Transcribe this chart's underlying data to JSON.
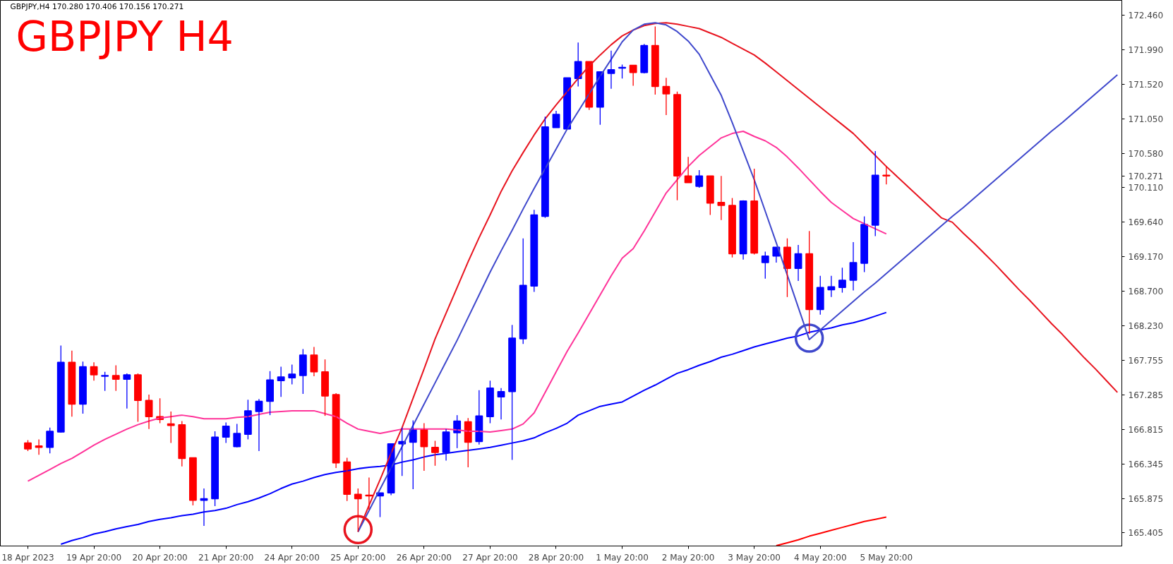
{
  "chart_data": {
    "type": "candlestick",
    "title": "GBPJPY H4",
    "subtitle": "GBPJPY,H4 170.280 170.406 170.156 170.271",
    "categories": [
      "18 Apr 2023",
      null,
      null,
      null,
      null,
      null,
      "19 Apr 20:00",
      null,
      null,
      null,
      null,
      null,
      "20 Apr 20:00",
      null,
      null,
      null,
      null,
      null,
      "21 Apr 20:00",
      null,
      null,
      null,
      null,
      null,
      "24 Apr 20:00",
      null,
      null,
      null,
      null,
      null,
      "25 Apr 20:00",
      null,
      null,
      null,
      null,
      null,
      "26 Apr 20:00",
      null,
      null,
      null,
      null,
      null,
      "27 Apr 20:00",
      null,
      null,
      null,
      null,
      null,
      "28 Apr 20:00",
      null,
      null,
      null,
      null,
      null,
      "1 May 20:00",
      null,
      null,
      null,
      null,
      null,
      "2 May 20:00",
      null,
      null,
      null,
      null,
      null,
      "3 May 20:00",
      null,
      null,
      null,
      null,
      null,
      "4 May 20:00",
      null,
      null,
      null,
      null,
      null,
      "5 May 20:00",
      null,
      null,
      null,
      null,
      null,
      null,
      null,
      null,
      null,
      null,
      null,
      null,
      null,
      null,
      null,
      null,
      null,
      null,
      null,
      null,
      null
    ],
    "ohlc": [
      [
        166.63,
        166.67,
        166.52,
        166.55
      ],
      [
        166.59,
        166.68,
        166.47,
        166.57
      ],
      [
        166.57,
        166.84,
        166.49,
        166.79
      ],
      [
        166.78,
        167.96,
        166.77,
        167.73
      ],
      [
        167.73,
        167.89,
        166.99,
        167.16
      ],
      [
        167.16,
        167.74,
        167.03,
        167.67
      ],
      [
        167.67,
        167.73,
        167.48,
        167.56
      ],
      [
        167.54,
        167.6,
        167.34,
        167.55
      ],
      [
        167.55,
        167.69,
        167.34,
        167.5
      ],
      [
        167.5,
        167.58,
        167.1,
        167.56
      ],
      [
        167.56,
        167.58,
        166.92,
        167.21
      ],
      [
        167.21,
        167.29,
        166.82,
        166.99
      ],
      [
        166.99,
        167.24,
        166.9,
        166.95
      ],
      [
        166.89,
        167.06,
        166.63,
        166.87
      ],
      [
        166.88,
        166.93,
        166.31,
        166.42
      ],
      [
        166.43,
        166.43,
        165.78,
        165.85
      ],
      [
        165.85,
        166.01,
        165.5,
        165.87
      ],
      [
        165.87,
        166.79,
        165.77,
        166.71
      ],
      [
        166.71,
        166.91,
        166.63,
        166.86
      ],
      [
        166.58,
        166.89,
        166.57,
        166.76
      ],
      [
        166.75,
        167.22,
        166.68,
        167.07
      ],
      [
        167.06,
        167.23,
        166.52,
        167.2
      ],
      [
        167.2,
        167.61,
        167.01,
        167.49
      ],
      [
        167.48,
        167.67,
        167.26,
        167.53
      ],
      [
        167.52,
        167.7,
        167.43,
        167.57
      ],
      [
        167.55,
        167.91,
        167.3,
        167.83
      ],
      [
        167.83,
        167.94,
        167.54,
        167.6
      ],
      [
        167.6,
        167.77,
        167.0,
        167.27
      ],
      [
        167.29,
        167.31,
        166.29,
        166.36
      ],
      [
        166.37,
        166.43,
        165.84,
        165.93
      ],
      [
        165.93,
        166.01,
        165.42,
        165.87
      ],
      [
        165.92,
        166.16,
        165.72,
        165.91
      ],
      [
        165.91,
        165.95,
        165.62,
        165.95
      ],
      [
        165.95,
        166.62,
        165.92,
        166.62
      ],
      [
        166.62,
        166.84,
        166.18,
        166.65
      ],
      [
        166.64,
        166.94,
        166.0,
        166.82
      ],
      [
        166.82,
        166.9,
        166.25,
        166.58
      ],
      [
        166.57,
        166.66,
        166.32,
        166.5
      ],
      [
        166.5,
        166.82,
        166.39,
        166.78
      ],
      [
        166.77,
        167.01,
        166.56,
        166.93
      ],
      [
        166.92,
        166.97,
        166.3,
        166.64
      ],
      [
        166.65,
        167.35,
        166.61,
        167.0
      ],
      [
        166.99,
        167.48,
        166.9,
        167.38
      ],
      [
        167.26,
        167.38,
        166.95,
        167.33
      ],
      [
        167.33,
        168.24,
        166.4,
        168.06
      ],
      [
        168.05,
        169.42,
        167.98,
        168.78
      ],
      [
        168.77,
        169.81,
        168.69,
        169.74
      ],
      [
        169.72,
        171.08,
        169.7,
        170.94
      ],
      [
        170.93,
        171.16,
        170.93,
        171.11
      ],
      [
        170.91,
        171.61,
        170.91,
        171.61
      ],
      [
        171.6,
        172.09,
        171.49,
        171.83
      ],
      [
        171.83,
        171.83,
        171.17,
        171.21
      ],
      [
        171.21,
        171.69,
        170.97,
        171.69
      ],
      [
        171.67,
        171.98,
        171.46,
        171.72
      ],
      [
        171.74,
        171.79,
        171.6,
        171.75
      ],
      [
        171.78,
        171.78,
        171.5,
        171.68
      ],
      [
        171.68,
        172.07,
        171.67,
        172.05
      ],
      [
        172.05,
        172.31,
        171.38,
        171.49
      ],
      [
        171.49,
        171.61,
        171.1,
        171.39
      ],
      [
        171.38,
        171.42,
        169.94,
        170.27
      ],
      [
        170.27,
        170.53,
        170.18,
        170.18
      ],
      [
        170.13,
        170.35,
        170.11,
        170.27
      ],
      [
        170.27,
        170.27,
        169.74,
        169.9
      ],
      [
        169.91,
        170.27,
        169.67,
        169.87
      ],
      [
        169.87,
        169.97,
        169.16,
        169.21
      ],
      [
        169.21,
        169.94,
        169.13,
        169.93
      ],
      [
        169.93,
        170.37,
        169.2,
        169.22
      ],
      [
        169.09,
        169.24,
        168.87,
        169.18
      ],
      [
        169.18,
        169.3,
        169.09,
        169.3
      ],
      [
        169.3,
        169.42,
        168.62,
        169.01
      ],
      [
        169.01,
        169.33,
        168.84,
        169.21
      ],
      [
        169.21,
        169.52,
        168.12,
        168.45
      ],
      [
        168.45,
        168.91,
        168.38,
        168.75
      ],
      [
        168.72,
        168.91,
        168.62,
        168.76
      ],
      [
        168.75,
        169.02,
        168.68,
        168.85
      ],
      [
        168.85,
        169.37,
        168.71,
        169.09
      ],
      [
        169.08,
        169.72,
        168.96,
        169.61
      ],
      [
        169.6,
        170.61,
        169.45,
        170.28
      ],
      [
        170.28,
        170.406,
        170.156,
        170.271
      ],
      null,
      null,
      null,
      null,
      null,
      null,
      null,
      null,
      null,
      null,
      null,
      null,
      null,
      null,
      null,
      null,
      null,
      null,
      null,
      null,
      null
    ],
    "colors": [
      "#ff0000",
      "#ff0000",
      "#0000ff",
      "#0000ff",
      "#ff0000",
      "#0000ff",
      "#ff0000",
      "#0000ff",
      "#ff0000",
      "#0000ff",
      "#ff0000",
      "#ff0000",
      "#ff0000",
      "#ff0000",
      "#ff0000",
      "#ff0000",
      "#0000ff",
      "#0000ff",
      "#0000ff",
      "#0000ff",
      "#0000ff",
      "#0000ff",
      "#0000ff",
      "#0000ff",
      "#0000ff",
      "#0000ff",
      "#ff0000",
      "#ff0000",
      "#ff0000",
      "#ff0000",
      "#ff0000",
      "#ff0000",
      "#0000ff",
      "#0000ff",
      "#0000ff",
      "#0000ff",
      "#ff0000",
      "#ff0000",
      "#0000ff",
      "#0000ff",
      "#ff0000",
      "#0000ff",
      "#0000ff",
      "#0000ff",
      "#0000ff",
      "#0000ff",
      "#0000ff",
      "#0000ff",
      "#0000ff",
      "#0000ff",
      "#0000ff",
      "#ff0000",
      "#0000ff",
      "#0000ff",
      "#0000ff",
      "#ff0000",
      "#0000ff",
      "#ff0000",
      "#ff0000",
      "#ff0000",
      "#ff0000",
      "#0000ff",
      "#ff0000",
      "#ff0000",
      "#ff0000",
      "#0000ff",
      "#ff0000",
      "#0000ff",
      "#0000ff",
      "#ff0000",
      "#0000ff",
      "#ff0000",
      "#0000ff",
      "#0000ff",
      "#0000ff",
      "#0000ff",
      "#0000ff",
      "#0000ff",
      "#ff0000",
      null,
      null,
      null,
      null,
      null,
      null,
      null,
      null,
      null,
      null,
      null,
      null,
      null,
      null,
      null,
      null,
      null,
      null,
      null,
      null,
      null
    ],
    "series": [
      {
        "type": "line",
        "color": "#ff3399",
        "values": [
          166.11,
          166.19,
          166.27,
          166.35,
          166.42,
          166.51,
          166.6,
          166.68,
          166.75,
          166.82,
          166.88,
          166.93,
          166.97,
          166.99,
          167.01,
          166.99,
          166.96,
          166.96,
          166.96,
          166.98,
          166.99,
          167.02,
          167.05,
          167.06,
          167.07,
          167.07,
          167.07,
          167.03,
          166.99,
          166.9,
          166.82,
          166.79,
          166.76,
          166.79,
          166.82,
          166.82,
          166.82,
          166.82,
          166.82,
          166.81,
          166.79,
          166.79,
          166.78,
          166.8,
          166.82,
          166.89,
          167.04,
          167.32,
          167.6,
          167.88,
          168.13,
          168.39,
          168.65,
          168.91,
          169.15,
          169.28,
          169.52,
          169.78,
          170.04,
          170.22,
          170.4,
          170.55,
          170.67,
          170.79,
          170.85,
          170.88,
          170.81,
          170.75,
          170.66,
          170.53,
          170.38,
          170.22,
          170.06,
          169.91,
          169.8,
          169.69,
          169.62,
          169.55,
          169.48,
          null,
          null,
          null,
          null,
          null,
          null,
          null,
          null,
          null,
          null,
          null,
          null,
          null,
          null,
          null,
          null,
          null,
          null,
          null,
          null,
          null
        ]
      },
      {
        "type": "line",
        "color": "#0000ff",
        "values": [
          null,
          null,
          null,
          165.25,
          165.3,
          165.34,
          165.39,
          165.42,
          165.46,
          165.49,
          165.52,
          165.56,
          165.59,
          165.61,
          165.64,
          165.66,
          165.69,
          165.71,
          165.74,
          165.79,
          165.83,
          165.88,
          165.94,
          166.01,
          166.07,
          166.11,
          166.16,
          166.2,
          166.23,
          166.25,
          166.28,
          166.3,
          166.31,
          166.33,
          166.37,
          166.4,
          166.44,
          166.47,
          166.49,
          166.51,
          166.53,
          166.55,
          166.57,
          166.6,
          166.63,
          166.66,
          166.7,
          166.77,
          166.83,
          166.9,
          167.01,
          167.07,
          167.13,
          167.16,
          167.19,
          167.27,
          167.35,
          167.42,
          167.5,
          167.58,
          167.63,
          167.69,
          167.74,
          167.8,
          167.84,
          167.89,
          167.94,
          167.98,
          168.02,
          168.06,
          168.09,
          168.14,
          168.17,
          168.2,
          168.24,
          168.27,
          168.31,
          168.36,
          168.41,
          null,
          null,
          null,
          null,
          null,
          null,
          null,
          null,
          null,
          null,
          null,
          null,
          null,
          null,
          null,
          null,
          null,
          null,
          null,
          null,
          null
        ]
      },
      {
        "type": "line",
        "color": "#ff0000",
        "values": [
          null,
          null,
          null,
          null,
          null,
          null,
          null,
          null,
          null,
          null,
          null,
          null,
          null,
          null,
          null,
          null,
          null,
          null,
          null,
          null,
          null,
          null,
          null,
          null,
          null,
          null,
          null,
          null,
          null,
          null,
          null,
          null,
          null,
          null,
          null,
          null,
          null,
          null,
          null,
          null,
          null,
          null,
          null,
          null,
          null,
          null,
          null,
          null,
          null,
          null,
          null,
          null,
          null,
          null,
          null,
          null,
          null,
          null,
          null,
          null,
          null,
          null,
          null,
          null,
          null,
          null,
          null,
          null,
          165.23,
          165.27,
          165.31,
          165.36,
          165.4,
          165.44,
          165.48,
          165.52,
          165.56,
          165.59,
          165.62,
          null,
          null,
          null,
          null,
          null,
          null,
          null,
          null,
          null,
          null,
          null,
          null,
          null,
          null,
          null,
          null,
          null,
          null,
          null,
          null,
          null
        ]
      },
      {
        "type": "line",
        "color": "#e8141f",
        "values": [
          null,
          null,
          null,
          null,
          null,
          null,
          null,
          null,
          null,
          null,
          null,
          null,
          null,
          null,
          null,
          null,
          null,
          null,
          null,
          null,
          null,
          null,
          null,
          null,
          null,
          null,
          null,
          null,
          null,
          null,
          165.42,
          165.78,
          166.13,
          166.49,
          166.84,
          167.24,
          167.64,
          168.05,
          168.4,
          168.75,
          169.1,
          169.43,
          169.74,
          170.06,
          170.34,
          170.59,
          170.83,
          171.05,
          171.24,
          171.42,
          171.6,
          171.77,
          171.92,
          172.06,
          172.18,
          172.26,
          172.32,
          172.35,
          172.36,
          172.34,
          172.31,
          172.28,
          172.22,
          172.16,
          172.08,
          172.0,
          171.92,
          171.81,
          171.69,
          171.57,
          171.45,
          171.33,
          171.21,
          171.09,
          170.97,
          170.85,
          170.7,
          170.55,
          170.4,
          170.26,
          170.12,
          169.98,
          169.84,
          169.7,
          169.64,
          169.49,
          169.35,
          169.2,
          169.05,
          168.89,
          168.73,
          168.58,
          168.42,
          168.26,
          168.11,
          167.95,
          167.79,
          167.64,
          167.48,
          167.32
        ]
      },
      {
        "type": "line",
        "color": "#3f48cc",
        "values": [
          null,
          null,
          null,
          null,
          null,
          null,
          null,
          null,
          null,
          null,
          null,
          null,
          null,
          null,
          null,
          null,
          null,
          null,
          null,
          null,
          null,
          null,
          null,
          null,
          null,
          null,
          null,
          null,
          null,
          null,
          165.42,
          165.71,
          166.0,
          166.29,
          166.58,
          166.87,
          167.16,
          167.45,
          167.74,
          168.03,
          168.34,
          168.65,
          168.96,
          169.25,
          169.53,
          169.82,
          170.1,
          170.37,
          170.64,
          170.91,
          171.15,
          171.39,
          171.63,
          171.86,
          172.1,
          172.26,
          172.34,
          172.36,
          172.33,
          172.24,
          172.11,
          171.93,
          171.65,
          171.37,
          171.0,
          170.61,
          170.22,
          169.79,
          169.36,
          168.92,
          168.48,
          168.04,
          168.17,
          168.3,
          168.43,
          168.56,
          168.69,
          168.81,
          168.94,
          169.07,
          169.2,
          169.33,
          169.46,
          169.59,
          169.72,
          169.84,
          169.97,
          170.1,
          170.23,
          170.36,
          170.49,
          170.62,
          170.75,
          170.88,
          171.0,
          171.13,
          171.26,
          171.39,
          171.52,
          171.65
        ]
      },
      {
        "type": "scatter",
        "marker": "circle",
        "color": "#e8141f",
        "values": [
          null,
          null,
          null,
          null,
          null,
          null,
          null,
          null,
          null,
          null,
          null,
          null,
          null,
          null,
          null,
          null,
          null,
          null,
          null,
          null,
          null,
          null,
          null,
          null,
          null,
          null,
          null,
          null,
          null,
          null,
          165.45,
          null,
          null,
          null,
          null,
          null,
          null,
          null,
          null,
          null,
          null,
          null,
          null,
          null,
          null,
          null,
          null,
          null,
          null,
          null,
          null,
          null,
          null,
          null,
          null,
          null,
          null,
          null,
          null,
          null,
          null,
          null,
          null,
          null,
          null,
          null,
          null,
          null,
          null,
          null,
          null,
          null,
          null,
          null,
          null,
          null,
          null,
          null,
          null,
          null,
          null,
          null,
          null,
          null,
          null,
          null,
          null,
          null,
          null,
          null,
          null,
          null,
          null,
          null,
          null,
          null,
          null,
          null,
          null,
          null
        ]
      },
      {
        "type": "scatter",
        "marker": "circle",
        "color": "#3f48cc",
        "values": [
          null,
          null,
          null,
          null,
          null,
          null,
          null,
          null,
          null,
          null,
          null,
          null,
          null,
          null,
          null,
          null,
          null,
          null,
          null,
          null,
          null,
          null,
          null,
          null,
          null,
          null,
          null,
          null,
          null,
          null,
          null,
          null,
          null,
          null,
          null,
          null,
          null,
          null,
          null,
          null,
          null,
          null,
          null,
          null,
          null,
          null,
          null,
          null,
          null,
          null,
          null,
          null,
          null,
          null,
          null,
          null,
          null,
          null,
          null,
          null,
          null,
          null,
          null,
          null,
          null,
          null,
          null,
          null,
          null,
          null,
          null,
          168.06,
          null,
          null,
          null,
          null,
          null,
          null,
          null,
          null,
          null,
          null,
          null,
          null,
          null,
          null,
          null,
          null,
          null,
          null,
          null,
          null,
          null,
          null,
          null,
          null,
          null,
          null,
          null,
          null
        ]
      }
    ],
    "ylim": [
      165.226,
      172.665
    ],
    "yticks": [
      {
        "value": 165.405,
        "label": "165.405"
      },
      {
        "value": 165.875,
        "label": "165.875"
      },
      {
        "value": 166.345,
        "label": "166.345"
      },
      {
        "value": 166.815,
        "label": "166.815"
      },
      {
        "value": 167.285,
        "label": "167.285"
      },
      {
        "value": 167.755,
        "label": "167.755"
      },
      {
        "value": 168.23,
        "label": "168.230"
      },
      {
        "value": 168.7,
        "label": "168.700"
      },
      {
        "value": 169.17,
        "label": "169.170"
      },
      {
        "value": 169.64,
        "label": "169.640"
      },
      {
        "value": 170.11,
        "label": "170.110"
      },
      {
        "value": 170.271,
        "label": "170.271"
      },
      {
        "value": 170.58,
        "label": "170.580"
      },
      {
        "value": 171.05,
        "label": "171.050"
      },
      {
        "value": 171.52,
        "label": "171.520"
      },
      {
        "value": 171.99,
        "label": "171.990"
      },
      {
        "value": 172.46,
        "label": "172.460"
      }
    ],
    "grid": false
  }
}
